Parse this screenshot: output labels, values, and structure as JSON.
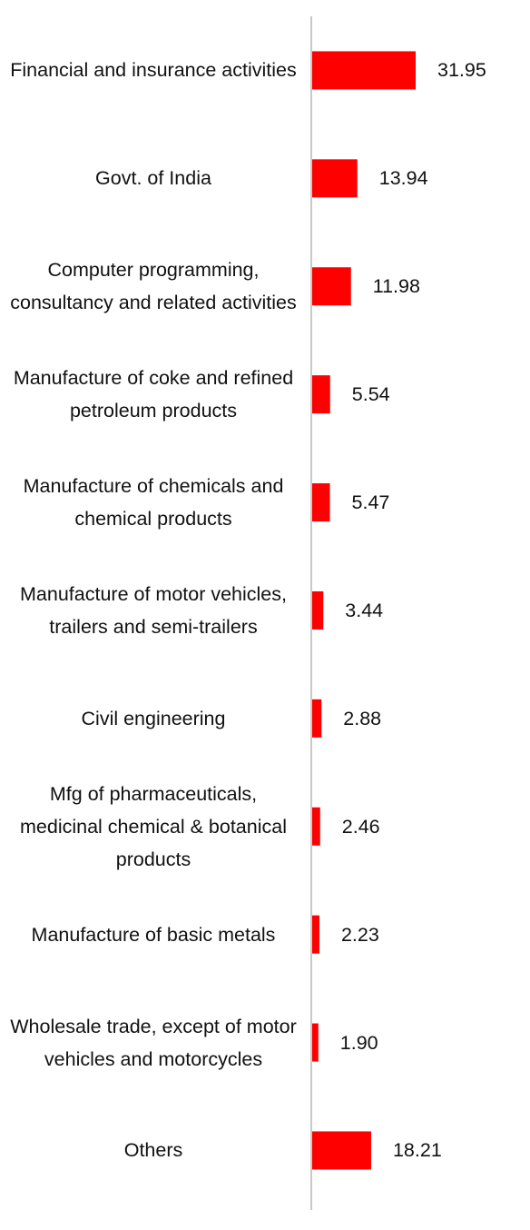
{
  "chart_data": {
    "type": "bar",
    "orientation": "horizontal",
    "categories": [
      "Financial and insurance activities",
      "Govt. of India",
      "Computer programming, consultancy and related activities",
      "Manufacture of coke and refined petroleum products",
      "Manufacture of chemicals and chemical products",
      "Manufacture of motor vehicles, trailers and semi-trailers",
      "Civil engineering",
      "Mfg of pharmaceuticals, medicinal chemical & botanical products",
      "Manufacture of basic metals",
      "Wholesale trade, except of motor vehicles and motorcycles",
      "Others"
    ],
    "values": [
      31.95,
      13.94,
      11.98,
      5.54,
      5.47,
      3.44,
      2.88,
      2.46,
      2.23,
      1.9,
      18.21
    ],
    "value_labels": [
      "31.95",
      "13.94",
      "11.98",
      "5.54",
      "5.47",
      "3.44",
      "2.88",
      "2.46",
      "2.23",
      "1.90",
      "18.21"
    ],
    "bar_color": "#ff0000",
    "axis_color": "#c8c8c8",
    "xlim": [
      0,
      40
    ],
    "grid": false,
    "legend": "none"
  }
}
